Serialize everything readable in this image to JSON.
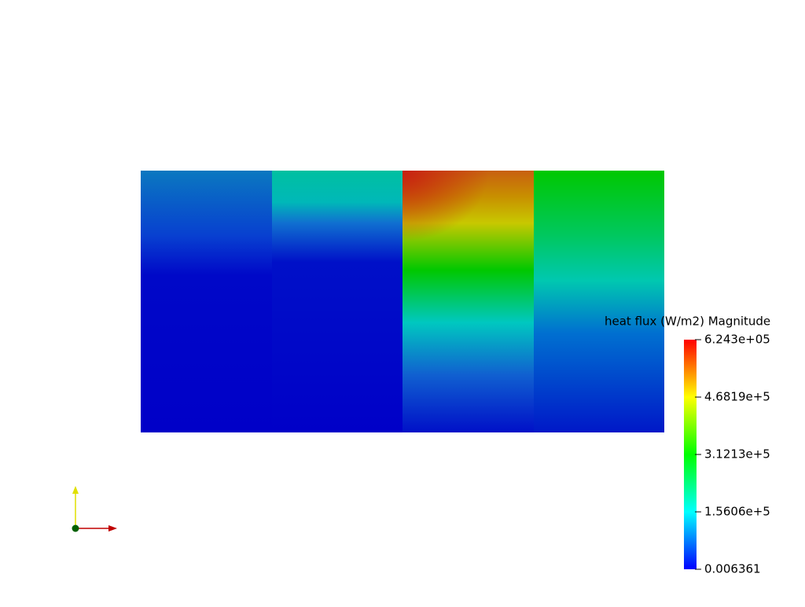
{
  "colorbar": {
    "title": "heat flux (W/m2) Magnitude",
    "range": [
      0.006361,
      624300
    ],
    "ticks": [
      0.006361,
      {
        "value": 156060,
        "label": "1.5606e+5"
      },
      {
        "value": 312130,
        "label": "3.1213e+5"
      },
      {
        "value": 468190,
        "label": "4.6819e+5"
      },
      {
        "value": 624300,
        "label": "6.243e+05"
      }
    ]
  }
}
